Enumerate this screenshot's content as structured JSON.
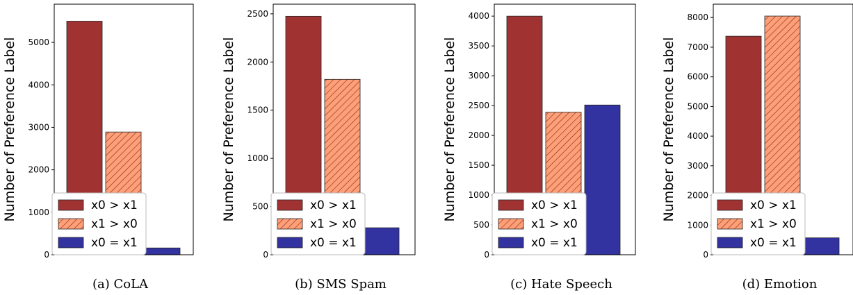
{
  "chart_data": [
    {
      "type": "bar",
      "caption": "(a) CoLA",
      "ylabel": "Number of Preference Label",
      "ylim": [
        0,
        5900
      ],
      "yticks": [
        0,
        1000,
        2000,
        3000,
        4000,
        5000
      ],
      "series": [
        {
          "name": "x0 > x1",
          "value": 5500
        },
        {
          "name": "x1 > x0",
          "value": 2890
        },
        {
          "name": "x0 = x1",
          "value": 160
        }
      ]
    },
    {
      "type": "bar",
      "caption": "(b) SMS Spam",
      "ylabel": "Number of Preference Label",
      "ylim": [
        0,
        2600
      ],
      "yticks": [
        0,
        500,
        1000,
        1500,
        2000,
        2500
      ],
      "series": [
        {
          "name": "x0 > x1",
          "value": 2475
        },
        {
          "name": "x1 > x0",
          "value": 1820
        },
        {
          "name": "x0 = x1",
          "value": 280
        }
      ]
    },
    {
      "type": "bar",
      "caption": "(c) Hate Speech",
      "ylabel": "Number of Preference Label",
      "ylim": [
        0,
        4200
      ],
      "yticks": [
        0,
        500,
        1000,
        1500,
        2000,
        2500,
        3000,
        3500,
        4000
      ],
      "series": [
        {
          "name": "x0 > x1",
          "value": 4000
        },
        {
          "name": "x1 > x0",
          "value": 2390
        },
        {
          "name": "x0 = x1",
          "value": 2510
        }
      ]
    },
    {
      "type": "bar",
      "caption": "(d) Emotion",
      "ylabel": "Number of Preference Label",
      "ylim": [
        0,
        8450
      ],
      "yticks": [
        0,
        1000,
        2000,
        3000,
        4000,
        5000,
        6000,
        7000,
        8000
      ],
      "series": [
        {
          "name": "x0 > x1",
          "value": 7370
        },
        {
          "name": "x1 > x0",
          "value": 8050
        },
        {
          "name": "x0 = x1",
          "value": 570
        }
      ]
    }
  ],
  "legend_placement": "lower-left",
  "colors": {
    "x0 > x1": "#a03232",
    "x1 > x0": "#ff9f78",
    "x0 = x1": "#3232a0",
    "edge": "#222222",
    "hatch": "#7a2a1a"
  }
}
